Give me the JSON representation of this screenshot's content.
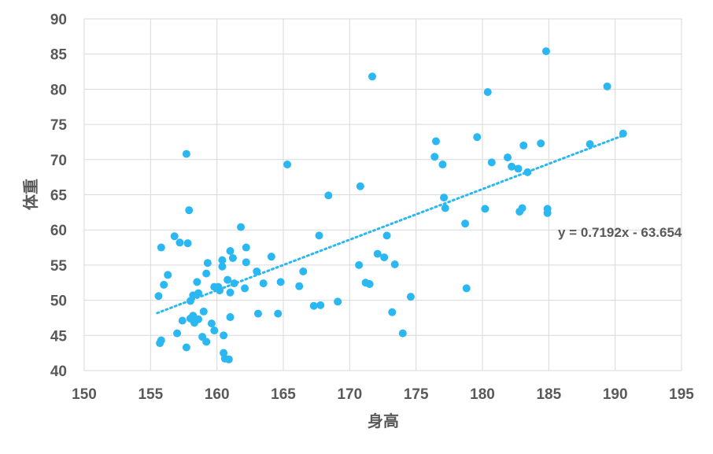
{
  "chart_data": {
    "type": "scatter",
    "xlabel": "身高",
    "ylabel": "体重",
    "xlim": [
      150,
      195
    ],
    "ylim": [
      40,
      90
    ],
    "xticks": [
      150,
      155,
      160,
      165,
      170,
      175,
      180,
      185,
      190,
      195
    ],
    "yticks": [
      40,
      45,
      50,
      55,
      60,
      65,
      70,
      75,
      80,
      85,
      90
    ],
    "grid": "vertical and horizontal major gridlines",
    "legend": "none",
    "point_color": "#2ab7f2",
    "trendline": {
      "type": "linear",
      "style": "dotted",
      "color": "#2ab7f2",
      "slope": 0.7192,
      "intercept": -63.654,
      "x_range": [
        155.5,
        190.5
      ],
      "equation_label": "y = 0.7192x - 63.654"
    },
    "points": [
      [
        155.6,
        50.6
      ],
      [
        155.7,
        43.9
      ],
      [
        155.8,
        57.5
      ],
      [
        155.8,
        44.3
      ],
      [
        156.0,
        52.2
      ],
      [
        156.3,
        53.6
      ],
      [
        156.8,
        59.1
      ],
      [
        157.0,
        45.3
      ],
      [
        157.2,
        58.2
      ],
      [
        157.4,
        47.1
      ],
      [
        157.7,
        43.3
      ],
      [
        157.7,
        70.8
      ],
      [
        157.8,
        58.1
      ],
      [
        157.9,
        62.8
      ],
      [
        158.0,
        47.4
      ],
      [
        158.0,
        49.9
      ],
      [
        158.2,
        50.7
      ],
      [
        158.2,
        47.8
      ],
      [
        158.3,
        46.8
      ],
      [
        158.5,
        52.6
      ],
      [
        158.6,
        47.3
      ],
      [
        158.6,
        51.0
      ],
      [
        158.9,
        44.8
      ],
      [
        159.0,
        48.4
      ],
      [
        159.2,
        44.1
      ],
      [
        159.2,
        53.8
      ],
      [
        159.3,
        55.3
      ],
      [
        159.6,
        46.7
      ],
      [
        159.8,
        45.7
      ],
      [
        159.8,
        51.9
      ],
      [
        160.1,
        51.9
      ],
      [
        160.2,
        51.4
      ],
      [
        160.4,
        55.7
      ],
      [
        160.4,
        54.8
      ],
      [
        160.5,
        45.0
      ],
      [
        160.5,
        42.5
      ],
      [
        160.6,
        41.7
      ],
      [
        160.8,
        52.9
      ],
      [
        160.9,
        41.6
      ],
      [
        161.0,
        51.1
      ],
      [
        161.0,
        57.0
      ],
      [
        161.0,
        47.6
      ],
      [
        161.2,
        56.0
      ],
      [
        161.3,
        52.4
      ],
      [
        161.8,
        60.4
      ],
      [
        162.1,
        51.7
      ],
      [
        162.2,
        55.4
      ],
      [
        162.2,
        57.5
      ],
      [
        163.0,
        54.1
      ],
      [
        163.1,
        48.1
      ],
      [
        163.5,
        52.4
      ],
      [
        164.1,
        56.2
      ],
      [
        164.6,
        48.1
      ],
      [
        164.8,
        52.6
      ],
      [
        165.3,
        69.3
      ],
      [
        166.2,
        52.0
      ],
      [
        166.5,
        54.1
      ],
      [
        167.3,
        49.2
      ],
      [
        167.7,
        59.2
      ],
      [
        167.8,
        49.3
      ],
      [
        168.4,
        64.9
      ],
      [
        169.1,
        49.8
      ],
      [
        170.7,
        55.0
      ],
      [
        170.8,
        66.2
      ],
      [
        171.2,
        52.5
      ],
      [
        171.5,
        52.3
      ],
      [
        171.7,
        81.8
      ],
      [
        172.1,
        56.6
      ],
      [
        172.6,
        56.1
      ],
      [
        172.8,
        59.2
      ],
      [
        173.2,
        48.3
      ],
      [
        173.4,
        55.1
      ],
      [
        174.0,
        45.3
      ],
      [
        174.6,
        50.5
      ],
      [
        176.4,
        70.4
      ],
      [
        176.5,
        72.6
      ],
      [
        177.0,
        69.3
      ],
      [
        177.1,
        64.6
      ],
      [
        177.2,
        63.1
      ],
      [
        178.7,
        60.9
      ],
      [
        178.8,
        51.7
      ],
      [
        179.6,
        73.2
      ],
      [
        180.2,
        63.0
      ],
      [
        180.4,
        79.6
      ],
      [
        180.7,
        69.6
      ],
      [
        181.9,
        70.3
      ],
      [
        182.2,
        69.0
      ],
      [
        182.7,
        68.7
      ],
      [
        182.8,
        62.6
      ],
      [
        183.0,
        63.1
      ],
      [
        183.1,
        72.0
      ],
      [
        183.4,
        68.2
      ],
      [
        184.4,
        72.3
      ],
      [
        184.8,
        85.4
      ],
      [
        184.9,
        62.4
      ],
      [
        184.9,
        63.0
      ],
      [
        188.1,
        72.2
      ],
      [
        189.4,
        80.4
      ],
      [
        190.6,
        73.7
      ]
    ]
  }
}
